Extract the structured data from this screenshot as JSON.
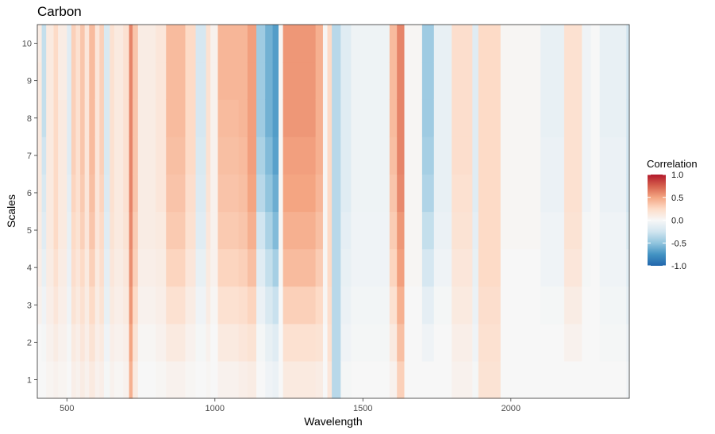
{
  "chart_data": {
    "type": "heatmap",
    "title": "Carbon",
    "xlabel": "Wavelength",
    "ylabel": "Scales",
    "xlim": [
      400,
      2400
    ],
    "ylim": [
      0.5,
      10.5
    ],
    "x_ticks": [
      500,
      1000,
      1500,
      2000
    ],
    "x_tick_labels": [
      "500",
      "1000",
      "1500",
      "2000"
    ],
    "y_ticks": [
      1,
      2,
      3,
      4,
      5,
      6,
      7,
      8,
      9,
      10
    ],
    "y_tick_labels": [
      "1",
      "2",
      "3",
      "4",
      "5",
      "6",
      "7",
      "8",
      "9",
      "10"
    ],
    "grid": false,
    "legend": {
      "title": "Correlation",
      "position": "right",
      "range": [
        -1.0,
        1.0
      ],
      "tick_values": [
        1.0,
        0.5,
        0.0,
        -0.5,
        -1.0
      ],
      "tick_labels": [
        "1.0",
        "0.5",
        "0.0",
        "-0.5",
        "-1.0"
      ],
      "colors": [
        "#2166ac",
        "#4393c3",
        "#92c5de",
        "#d1e5f0",
        "#f7f7f7",
        "#fddbc7",
        "#f4a582",
        "#d6604d",
        "#b2182b"
      ]
    },
    "scales": [
      1,
      2,
      3,
      4,
      5,
      6,
      7,
      8,
      9,
      10
    ],
    "bands": [
      {
        "range": [
          400,
          415
        ],
        "values": [
          0.0,
          0.0,
          0.05,
          0.08,
          0.1,
          0.12,
          0.12,
          0.12,
          0.12,
          0.1
        ]
      },
      {
        "range": [
          415,
          430
        ],
        "values": [
          0.0,
          -0.02,
          -0.05,
          -0.1,
          -0.15,
          -0.2,
          -0.25,
          -0.3,
          -0.3,
          -0.3
        ]
      },
      {
        "range": [
          430,
          455
        ],
        "values": [
          0.03,
          0.05,
          0.08,
          0.1,
          0.12,
          0.12,
          0.12,
          0.12,
          0.12,
          0.12
        ]
      },
      {
        "range": [
          455,
          470
        ],
        "values": [
          0.05,
          0.1,
          0.15,
          0.2,
          0.25,
          0.25,
          0.25,
          0.25,
          0.25,
          0.25
        ]
      },
      {
        "range": [
          470,
          500
        ],
        "values": [
          0.03,
          0.05,
          0.08,
          0.1,
          0.12,
          0.12,
          0.12,
          0.12,
          0.1,
          0.1
        ]
      },
      {
        "range": [
          500,
          515
        ],
        "values": [
          0.0,
          -0.02,
          -0.05,
          -0.08,
          -0.1,
          -0.12,
          -0.15,
          -0.15,
          -0.15,
          -0.15
        ]
      },
      {
        "range": [
          515,
          530
        ],
        "values": [
          0.08,
          0.12,
          0.18,
          0.22,
          0.25,
          0.28,
          0.3,
          0.3,
          0.3,
          0.3
        ]
      },
      {
        "range": [
          530,
          545
        ],
        "values": [
          0.05,
          0.08,
          0.12,
          0.15,
          0.18,
          0.2,
          0.2,
          0.2,
          0.2,
          0.2
        ]
      },
      {
        "range": [
          545,
          560
        ],
        "values": [
          0.1,
          0.15,
          0.2,
          0.25,
          0.3,
          0.33,
          0.35,
          0.35,
          0.35,
          0.35
        ]
      },
      {
        "range": [
          560,
          575
        ],
        "values": [
          0.05,
          0.08,
          0.1,
          0.12,
          0.15,
          0.15,
          0.15,
          0.15,
          0.15,
          0.15
        ]
      },
      {
        "range": [
          575,
          595
        ],
        "values": [
          0.12,
          0.18,
          0.25,
          0.3,
          0.35,
          0.38,
          0.4,
          0.4,
          0.4,
          0.4
        ]
      },
      {
        "range": [
          595,
          610
        ],
        "values": [
          0.05,
          0.08,
          0.1,
          0.12,
          0.15,
          0.15,
          0.15,
          0.15,
          0.15,
          0.15
        ]
      },
      {
        "range": [
          610,
          625
        ],
        "values": [
          0.08,
          0.12,
          0.18,
          0.22,
          0.25,
          0.28,
          0.3,
          0.3,
          0.3,
          0.3
        ]
      },
      {
        "range": [
          625,
          645
        ],
        "values": [
          -0.02,
          -0.05,
          -0.1,
          -0.12,
          -0.15,
          -0.18,
          -0.2,
          -0.2,
          -0.2,
          -0.2
        ]
      },
      {
        "range": [
          645,
          660
        ],
        "values": [
          0.05,
          0.08,
          0.12,
          0.15,
          0.18,
          0.2,
          0.2,
          0.2,
          0.2,
          0.2
        ]
      },
      {
        "range": [
          660,
          690
        ],
        "values": [
          0.02,
          0.05,
          0.08,
          0.1,
          0.12,
          0.12,
          0.12,
          0.12,
          0.12,
          0.12
        ]
      },
      {
        "range": [
          690,
          710
        ],
        "values": [
          0.05,
          0.08,
          0.12,
          0.15,
          0.18,
          0.2,
          0.2,
          0.2,
          0.2,
          0.2
        ]
      },
      {
        "range": [
          710,
          722
        ],
        "values": [
          0.45,
          0.5,
          0.55,
          0.58,
          0.6,
          0.62,
          0.62,
          0.62,
          0.62,
          0.62
        ]
      },
      {
        "range": [
          722,
          740
        ],
        "values": [
          0.12,
          0.18,
          0.25,
          0.3,
          0.32,
          0.35,
          0.35,
          0.35,
          0.35,
          0.35
        ]
      },
      {
        "range": [
          740,
          800
        ],
        "values": [
          0.0,
          0.02,
          0.05,
          0.08,
          0.1,
          0.1,
          0.1,
          0.1,
          0.1,
          0.1
        ]
      },
      {
        "range": [
          800,
          835
        ],
        "values": [
          0.02,
          0.05,
          0.08,
          0.1,
          0.12,
          0.15,
          0.15,
          0.15,
          0.15,
          0.15
        ]
      },
      {
        "range": [
          835,
          900
        ],
        "values": [
          0.05,
          0.12,
          0.2,
          0.28,
          0.33,
          0.36,
          0.38,
          0.4,
          0.4,
          0.4
        ]
      },
      {
        "range": [
          900,
          935
        ],
        "values": [
          0.02,
          0.05,
          0.1,
          0.15,
          0.2,
          0.22,
          0.25,
          0.25,
          0.25,
          0.25
        ]
      },
      {
        "range": [
          935,
          970
        ],
        "values": [
          0.0,
          -0.02,
          -0.05,
          -0.1,
          -0.15,
          -0.18,
          -0.2,
          -0.22,
          -0.22,
          -0.22
        ]
      },
      {
        "range": [
          970,
          985
        ],
        "values": [
          0.02,
          0.05,
          0.1,
          0.12,
          0.15,
          0.18,
          0.2,
          0.2,
          0.2,
          0.2
        ]
      },
      {
        "range": [
          985,
          1010
        ],
        "values": [
          0.0,
          0.0,
          0.02,
          0.05,
          0.05,
          0.05,
          0.05,
          0.05,
          0.05,
          0.05
        ]
      },
      {
        "range": [
          1010,
          1080
        ],
        "values": [
          0.05,
          0.12,
          0.2,
          0.28,
          0.33,
          0.36,
          0.38,
          0.4,
          0.42,
          0.42
        ]
      },
      {
        "range": [
          1080,
          1110
        ],
        "values": [
          0.08,
          0.15,
          0.22,
          0.3,
          0.35,
          0.38,
          0.4,
          0.42,
          0.42,
          0.42
        ]
      },
      {
        "range": [
          1110,
          1140
        ],
        "values": [
          0.1,
          0.18,
          0.28,
          0.38,
          0.45,
          0.5,
          0.52,
          0.52,
          0.52,
          0.52
        ]
      },
      {
        "range": [
          1140,
          1170
        ],
        "values": [
          0.0,
          -0.02,
          -0.08,
          -0.15,
          -0.25,
          -0.35,
          -0.4,
          -0.45,
          -0.45,
          -0.45
        ]
      },
      {
        "range": [
          1170,
          1195
        ],
        "values": [
          -0.05,
          -0.1,
          -0.2,
          -0.3,
          -0.4,
          -0.5,
          -0.55,
          -0.6,
          -0.6,
          -0.6
        ]
      },
      {
        "range": [
          1195,
          1215
        ],
        "values": [
          -0.08,
          -0.15,
          -0.28,
          -0.42,
          -0.55,
          -0.62,
          -0.68,
          -0.7,
          -0.7,
          -0.7
        ]
      },
      {
        "range": [
          1215,
          1230
        ],
        "values": [
          0.0,
          0.0,
          0.0,
          0.02,
          0.02,
          0.02,
          0.02,
          0.02,
          0.02,
          0.02
        ]
      },
      {
        "range": [
          1230,
          1340
        ],
        "values": [
          0.12,
          0.2,
          0.3,
          0.4,
          0.45,
          0.5,
          0.52,
          0.55,
          0.55,
          0.55
        ]
      },
      {
        "range": [
          1340,
          1365
        ],
        "values": [
          0.1,
          0.18,
          0.25,
          0.32,
          0.38,
          0.42,
          0.45,
          0.45,
          0.45,
          0.45
        ]
      },
      {
        "range": [
          1365,
          1380
        ],
        "values": [
          0.0,
          0.0,
          0.02,
          0.02,
          0.02,
          0.02,
          0.02,
          0.02,
          0.02,
          0.02
        ]
      },
      {
        "range": [
          1380,
          1395
        ],
        "values": [
          0.15,
          0.2,
          0.22,
          0.25,
          0.25,
          0.25,
          0.25,
          0.25,
          0.25,
          0.25
        ]
      },
      {
        "range": [
          1395,
          1425
        ],
        "values": [
          -0.35,
          -0.35,
          -0.35,
          -0.35,
          -0.35,
          -0.35,
          -0.35,
          -0.35,
          -0.35,
          -0.35
        ]
      },
      {
        "range": [
          1425,
          1460
        ],
        "values": [
          -0.02,
          -0.05,
          -0.08,
          -0.1,
          -0.12,
          -0.15,
          -0.15,
          -0.15,
          -0.15,
          -0.15
        ]
      },
      {
        "range": [
          1460,
          1590
        ],
        "values": [
          0.0,
          -0.02,
          -0.03,
          -0.05,
          -0.05,
          -0.06,
          -0.06,
          -0.06,
          -0.06,
          -0.06
        ]
      },
      {
        "range": [
          1590,
          1615
        ],
        "values": [
          0.05,
          0.12,
          0.2,
          0.28,
          0.32,
          0.35,
          0.38,
          0.4,
          0.4,
          0.4
        ]
      },
      {
        "range": [
          1615,
          1640
        ],
        "values": [
          0.3,
          0.38,
          0.45,
          0.52,
          0.55,
          0.6,
          0.62,
          0.62,
          0.62,
          0.62
        ]
      },
      {
        "range": [
          1640,
          1700
        ],
        "values": [
          0.0,
          0.0,
          0.0,
          0.02,
          0.02,
          0.02,
          0.02,
          0.02,
          0.02,
          0.02
        ]
      },
      {
        "range": [
          1700,
          1740
        ],
        "values": [
          0.0,
          -0.05,
          -0.12,
          -0.22,
          -0.3,
          -0.38,
          -0.42,
          -0.45,
          -0.45,
          -0.45
        ]
      },
      {
        "range": [
          1740,
          1800
        ],
        "values": [
          0.0,
          0.0,
          -0.02,
          -0.05,
          -0.08,
          -0.1,
          -0.1,
          -0.1,
          -0.1,
          -0.1
        ]
      },
      {
        "range": [
          1800,
          1870
        ],
        "values": [
          0.05,
          0.08,
          0.12,
          0.15,
          0.18,
          0.2,
          0.22,
          0.22,
          0.22,
          0.22
        ]
      },
      {
        "range": [
          1870,
          1890
        ],
        "values": [
          -0.02,
          -0.05,
          -0.08,
          -0.1,
          -0.12,
          -0.15,
          -0.15,
          -0.15,
          -0.15,
          -0.15
        ]
      },
      {
        "range": [
          1890,
          1965
        ],
        "values": [
          0.18,
          0.2,
          0.22,
          0.25,
          0.25,
          0.25,
          0.25,
          0.25,
          0.25,
          0.25
        ]
      },
      {
        "range": [
          1965,
          2100
        ],
        "values": [
          0.0,
          0.0,
          0.0,
          0.0,
          0.02,
          0.02,
          0.02,
          0.02,
          0.02,
          0.02
        ]
      },
      {
        "range": [
          2100,
          2180
        ],
        "values": [
          0.0,
          0.0,
          -0.02,
          -0.05,
          -0.05,
          -0.08,
          -0.08,
          -0.1,
          -0.1,
          -0.1
        ]
      },
      {
        "range": [
          2180,
          2240
        ],
        "values": [
          0.0,
          0.05,
          0.1,
          0.15,
          0.18,
          0.2,
          0.2,
          0.2,
          0.2,
          0.2
        ]
      },
      {
        "range": [
          2240,
          2270
        ],
        "values": [
          0.0,
          0.0,
          0.0,
          -0.02,
          -0.02,
          -0.05,
          -0.05,
          -0.05,
          -0.05,
          -0.05
        ]
      },
      {
        "range": [
          2270,
          2300
        ],
        "values": [
          0.0,
          0.0,
          0.0,
          0.0,
          0.0,
          0.0,
          0.0,
          0.0,
          0.0,
          0.0
        ]
      },
      {
        "range": [
          2300,
          2390
        ],
        "values": [
          0.0,
          -0.02,
          -0.03,
          -0.05,
          -0.05,
          -0.08,
          -0.08,
          -0.1,
          -0.1,
          -0.1
        ]
      },
      {
        "range": [
          2390,
          2400
        ],
        "values": [
          -0.05,
          -0.08,
          -0.12,
          -0.15,
          -0.2,
          -0.25,
          -0.25,
          -0.25,
          -0.25,
          -0.25
        ]
      }
    ]
  }
}
